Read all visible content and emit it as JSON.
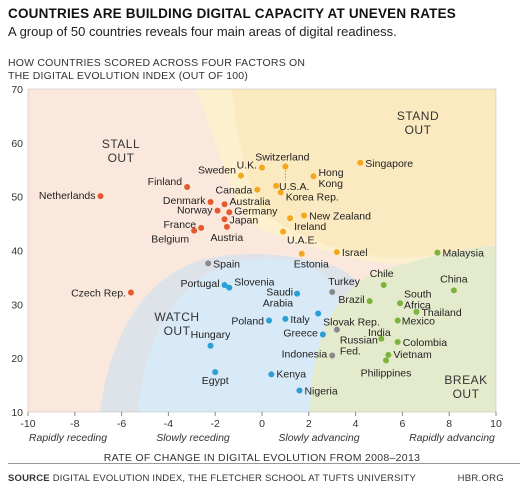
{
  "header": {
    "title": "COUNTRIES ARE BUILDING DIGITAL CAPACITY AT UNEVEN RATES",
    "subtitle": "A group of 50 countries reveals four main areas of digital readiness."
  },
  "footer": {
    "source_label": "SOURCE",
    "source_text": "DIGITAL EVOLUTION INDEX, THE FLETCHER SCHOOL AT TUFTS UNIVERSITY",
    "brand": "HBR.ORG"
  },
  "colors": {
    "stall_out": "#e5592f",
    "stand_out": "#f3a71e",
    "watch_out": "#2a9fd6",
    "break_out": "#7ab43c",
    "other": "#8a8a8a"
  },
  "chart_data": {
    "type": "scatter",
    "title": "HOW COUNTRIES SCORED ACROSS FOUR FACTORS ON THE DIGITAL EVOLUTION INDEX (OUT OF 100)",
    "xlabel": "RATE OF CHANGE IN DIGITAL EVOLUTION FROM 2008–2013",
    "ylabel": "",
    "xlim": [
      -10,
      10
    ],
    "ylim": [
      10,
      70
    ],
    "xticks": [
      -10,
      -8,
      -6,
      -4,
      -2,
      0,
      2,
      4,
      6,
      8,
      10
    ],
    "yticks": [
      10,
      20,
      30,
      40,
      50,
      60,
      70
    ],
    "grid": false,
    "x_region_labels": [
      "Rapidly receding",
      "Slowly receding",
      "Slowly advancing",
      "Rapidly advancing"
    ],
    "zone_labels": [
      "STALL OUT",
      "STAND OUT",
      "WATCH OUT",
      "BREAK OUT"
    ],
    "points": [
      {
        "name": "Netherlands",
        "x": -6.9,
        "y": 50.1,
        "group": "stall_out"
      },
      {
        "name": "Finland",
        "x": -3.2,
        "y": 51.8,
        "group": "stall_out"
      },
      {
        "name": "Denmark",
        "x": -2.2,
        "y": 49.0,
        "group": "stall_out"
      },
      {
        "name": "Norway",
        "x": -1.9,
        "y": 47.4,
        "group": "stall_out"
      },
      {
        "name": "France",
        "x": -2.6,
        "y": 44.2,
        "group": "stall_out"
      },
      {
        "name": "Belgium",
        "x": -2.9,
        "y": 43.7,
        "group": "stall_out"
      },
      {
        "name": "Australia",
        "x": -1.6,
        "y": 48.6,
        "group": "stall_out"
      },
      {
        "name": "Germany",
        "x": -1.4,
        "y": 47.1,
        "group": "stall_out"
      },
      {
        "name": "Japan",
        "x": -1.6,
        "y": 45.8,
        "group": "stall_out"
      },
      {
        "name": "Austria",
        "x": -1.5,
        "y": 44.4,
        "group": "stall_out"
      },
      {
        "name": "Sweden",
        "x": -0.9,
        "y": 53.9,
        "group": "stand_out"
      },
      {
        "name": "U.K.",
        "x": 0.0,
        "y": 55.4,
        "group": "stand_out"
      },
      {
        "name": "Canada",
        "x": -0.2,
        "y": 51.3,
        "group": "stand_out"
      },
      {
        "name": "Switzerland",
        "x": 1.0,
        "y": 55.6,
        "group": "stand_out"
      },
      {
        "name": "U.S.A.",
        "x": 0.6,
        "y": 52.0,
        "group": "stand_out"
      },
      {
        "name": "Korea Rep.",
        "x": 0.8,
        "y": 50.8,
        "group": "stand_out"
      },
      {
        "name": "Hong Kong",
        "x": 2.2,
        "y": 53.8,
        "group": "stand_out"
      },
      {
        "name": "Singapore",
        "x": 4.2,
        "y": 56.3,
        "group": "stand_out"
      },
      {
        "name": "New Zealand",
        "x": 1.8,
        "y": 46.5,
        "group": "stand_out"
      },
      {
        "name": "Ireland",
        "x": 1.2,
        "y": 46.0,
        "group": "stand_out"
      },
      {
        "name": "U.A.E.",
        "x": 0.9,
        "y": 43.5,
        "group": "stand_out"
      },
      {
        "name": "Israel",
        "x": 3.2,
        "y": 39.7,
        "group": "stand_out"
      },
      {
        "name": "Estonia",
        "x": 1.7,
        "y": 39.4,
        "group": "stand_out"
      },
      {
        "name": "Spain",
        "x": -2.3,
        "y": 37.6,
        "group": "other"
      },
      {
        "name": "Czech Rep.",
        "x": -5.6,
        "y": 32.2,
        "group": "stall_out"
      },
      {
        "name": "Portugal",
        "x": -1.6,
        "y": 33.6,
        "group": "watch_out"
      },
      {
        "name": "Slovenia",
        "x": -1.4,
        "y": 33.1,
        "group": "watch_out"
      },
      {
        "name": "Saudi Arabia",
        "x": 1.5,
        "y": 32.0,
        "group": "watch_out"
      },
      {
        "name": "Poland",
        "x": 0.3,
        "y": 27.0,
        "group": "watch_out"
      },
      {
        "name": "Italy",
        "x": 1.0,
        "y": 27.3,
        "group": "watch_out"
      },
      {
        "name": "Slovak Rep.",
        "x": 2.4,
        "y": 28.3,
        "group": "watch_out"
      },
      {
        "name": "Greece",
        "x": 2.6,
        "y": 24.4,
        "group": "watch_out"
      },
      {
        "name": "Hungary",
        "x": -2.2,
        "y": 22.3,
        "group": "watch_out"
      },
      {
        "name": "Egypt",
        "x": -2.0,
        "y": 17.4,
        "group": "watch_out"
      },
      {
        "name": "Kenya",
        "x": 0.4,
        "y": 17.0,
        "group": "watch_out"
      },
      {
        "name": "Nigeria",
        "x": 1.6,
        "y": 14.0,
        "group": "watch_out"
      },
      {
        "name": "Turkey",
        "x": 3.0,
        "y": 32.3,
        "group": "other"
      },
      {
        "name": "Russian Fed.",
        "x": 3.2,
        "y": 25.3,
        "group": "other"
      },
      {
        "name": "Indonesia",
        "x": 3.0,
        "y": 20.5,
        "group": "other"
      },
      {
        "name": "Malaysia",
        "x": 7.5,
        "y": 39.6,
        "group": "break_out"
      },
      {
        "name": "Chile",
        "x": 5.2,
        "y": 33.6,
        "group": "break_out"
      },
      {
        "name": "China",
        "x": 8.2,
        "y": 32.6,
        "group": "break_out"
      },
      {
        "name": "Brazil",
        "x": 4.6,
        "y": 30.6,
        "group": "break_out"
      },
      {
        "name": "South Africa",
        "x": 5.9,
        "y": 30.2,
        "group": "break_out"
      },
      {
        "name": "Thailand",
        "x": 6.6,
        "y": 28.6,
        "group": "break_out"
      },
      {
        "name": "Mexico",
        "x": 5.8,
        "y": 27.0,
        "group": "break_out"
      },
      {
        "name": "India",
        "x": 5.1,
        "y": 23.6,
        "group": "break_out"
      },
      {
        "name": "Colombia",
        "x": 5.8,
        "y": 23.0,
        "group": "break_out"
      },
      {
        "name": "Vietnam",
        "x": 5.4,
        "y": 20.6,
        "group": "break_out"
      },
      {
        "name": "Philippines",
        "x": 5.3,
        "y": 19.6,
        "group": "break_out"
      }
    ]
  }
}
